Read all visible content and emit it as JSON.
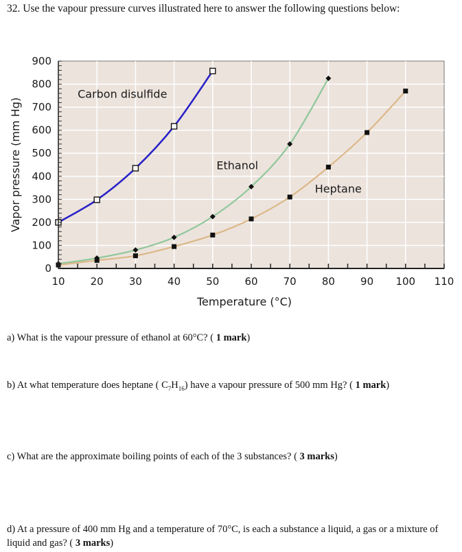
{
  "header": {
    "question_title": "32. Use the vapour pressure curves illustrated here to answer the following questions below:"
  },
  "questions": [
    {
      "id": "a",
      "text": "a) What is the vapour pressure of ethanol at 60°C? ( ",
      "marks": "1 mark",
      "close": ")"
    },
    {
      "id": "b",
      "text_before": "b) At what temperature does heptane ( C",
      "sub1": "7",
      "mid": "H",
      "sub2": "16",
      "text_after": ") have a vapour pressure of 500 mm Hg? ( ",
      "marks": "1 mark",
      "close": ")"
    },
    {
      "id": "c",
      "text": "c) What are the approximate boiling points of each of the 3 substances?  ( ",
      "marks": "3 marks",
      "close": ")"
    },
    {
      "id": "d",
      "text": "d) At a pressure of 400 mm Hg and a temperature of 70°C, is each a substance a liquid, a gas or a mixture of liquid and gas? ( ",
      "marks": "3 marks",
      "close": ")"
    }
  ],
  "chart_data": {
    "type": "line",
    "title": "",
    "xlabel": "Temperature (°C)",
    "ylabel": "Vapor pressure (mm Hg)",
    "xlim": [
      10,
      110
    ],
    "ylim": [
      0,
      900
    ],
    "xticks": [
      10,
      20,
      30,
      40,
      50,
      60,
      70,
      80,
      90,
      100,
      110
    ],
    "yticks": [
      0,
      100,
      200,
      300,
      400,
      500,
      600,
      700,
      800,
      900
    ],
    "grid": true,
    "legend": "inline labels",
    "background": "#ece3dc",
    "series": [
      {
        "name": "Carbon disulfide",
        "color": "#2a22c8",
        "marker": "open-square",
        "x": [
          10,
          20,
          30,
          40,
          50
        ],
        "values": [
          200,
          298,
          435,
          617,
          857
        ],
        "label_pos": {
          "x": 15,
          "y": 740
        }
      },
      {
        "name": "Ethanol",
        "color": "#8fc79b",
        "marker": "diamond",
        "x": [
          10,
          20,
          30,
          40,
          50,
          60,
          70,
          80
        ],
        "values": [
          20,
          45,
          80,
          135,
          225,
          355,
          540,
          825
        ],
        "label_pos": {
          "x": 51,
          "y": 430
        }
      },
      {
        "name": "Heptane",
        "color": "#dcb888",
        "marker": "filled-square",
        "x": [
          10,
          20,
          30,
          40,
          50,
          60,
          70,
          80,
          90,
          100
        ],
        "values": [
          15,
          35,
          55,
          95,
          145,
          215,
          310,
          440,
          590,
          770
        ],
        "label_pos": {
          "x": 76.5,
          "y": 330
        }
      }
    ]
  }
}
